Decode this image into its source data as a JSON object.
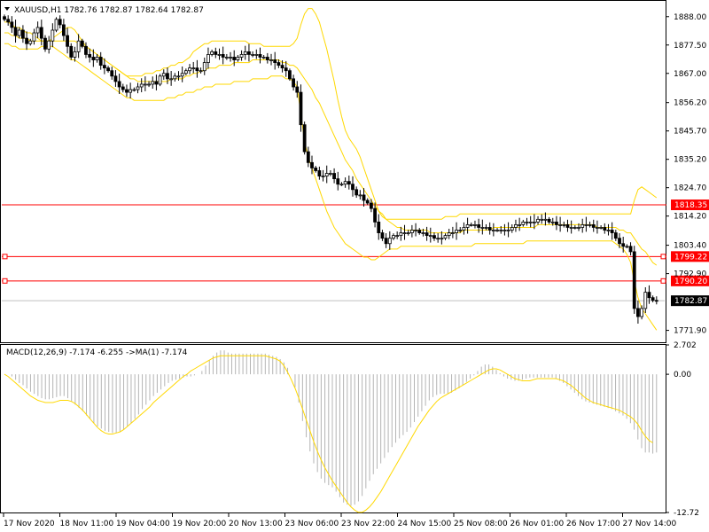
{
  "chart_data": [
    {
      "type": "candlestick",
      "title": "XAUUSD,H1  1782.76 1782.87 1782.64 1782.87",
      "symbol": "XAUUSD",
      "timeframe": "H1",
      "ohlc_header": {
        "open": 1782.76,
        "high": 1782.87,
        "low": 1782.64,
        "close": 1782.87
      },
      "ylim": [
        1767.5,
        1893.5
      ],
      "y_ticks": [
        "1888.00",
        "1877.50",
        "1867.00",
        "1856.20",
        "1845.70",
        "1835.20",
        "1824.70",
        "1814.20",
        "1803.40",
        "1792.90",
        "1771.90"
      ],
      "x_ticks": [
        "17 Nov 2020",
        "18 Nov 11:00",
        "19 Nov 04:00",
        "19 Nov 20:00",
        "20 Nov 13:00",
        "23 Nov 06:00",
        "23 Nov 22:00",
        "24 Nov 15:00",
        "25 Nov 08:00",
        "26 Nov 01:00",
        "26 Nov 17:00",
        "27 Nov 14:00"
      ],
      "current_price": "1782.87",
      "horizontal_levels": [
        {
          "value": 1818.35,
          "label": "1818.35",
          "color": "#ff0000"
        },
        {
          "value": 1799.22,
          "label": "1799.22",
          "color": "#ff0000"
        },
        {
          "value": 1790.2,
          "label": "1790.20",
          "color": "#ff0000"
        }
      ],
      "overlay": "Bollinger Bands",
      "closes": [
        1887,
        1886,
        1884,
        1881,
        1883,
        1880,
        1878,
        1879,
        1882,
        1884,
        1880,
        1876,
        1879,
        1883,
        1887,
        1885,
        1881,
        1877,
        1873,
        1875,
        1879,
        1877,
        1874,
        1873,
        1872,
        1873,
        1870,
        1869,
        1868,
        1866,
        1864,
        1862,
        1861,
        1860,
        1861,
        1861,
        1862,
        1863,
        1863,
        1863,
        1864,
        1863,
        1866,
        1867,
        1865,
        1865,
        1866,
        1866,
        1867,
        1868,
        1869,
        1869,
        1868,
        1868,
        1871,
        1874,
        1875,
        1874,
        1874,
        1873,
        1873,
        1873,
        1872,
        1873,
        1874,
        1875,
        1874,
        1874,
        1874,
        1873,
        1873,
        1872,
        1872,
        1871,
        1870,
        1869,
        1868,
        1865,
        1862,
        1860,
        1848,
        1838,
        1834,
        1832,
        1831,
        1829,
        1829,
        1830,
        1830,
        1828,
        1826,
        1826,
        1827,
        1826,
        1824,
        1822,
        1822,
        1820,
        1819,
        1817,
        1812,
        1808,
        1806,
        1804,
        1806,
        1807,
        1807,
        1808,
        1808,
        1808,
        1809,
        1809,
        1808,
        1808,
        1807,
        1807,
        1806,
        1806,
        1806,
        1807,
        1808,
        1808,
        1809,
        1809,
        1810,
        1811,
        1811,
        1811,
        1810,
        1810,
        1810,
        1809,
        1809,
        1809,
        1809,
        1809,
        1809,
        1810,
        1811,
        1811,
        1812,
        1812,
        1812,
        1812,
        1813,
        1813,
        1813,
        1812,
        1812,
        1811,
        1811,
        1811,
        1810,
        1810,
        1810,
        1810,
        1811,
        1811,
        1811,
        1810,
        1810,
        1810,
        1809,
        1809,
        1808,
        1806,
        1804,
        1803,
        1803,
        1801,
        1780,
        1777,
        1780,
        1786,
        1784,
        1783,
        1782.87
      ],
      "bb_upper": [
        1886,
        1886,
        1885,
        1884,
        1884,
        1883,
        1882,
        1882,
        1881,
        1880,
        1879,
        1879,
        1879,
        1880,
        1881,
        1882,
        1883,
        1884,
        1884,
        1883,
        1881,
        1879,
        1877,
        1876,
        1875,
        1874,
        1873,
        1872,
        1871,
        1870,
        1869,
        1868,
        1867,
        1866,
        1866,
        1866,
        1866,
        1866,
        1867,
        1867,
        1867,
        1868,
        1868,
        1869,
        1869,
        1870,
        1870,
        1871,
        1871,
        1872,
        1873,
        1875,
        1876,
        1877,
        1878,
        1878,
        1879,
        1879,
        1879,
        1879,
        1879,
        1879,
        1879,
        1879,
        1879,
        1879,
        1878,
        1878,
        1878,
        1878,
        1877,
        1877,
        1877,
        1877,
        1877,
        1877,
        1877,
        1877,
        1878,
        1880,
        1885,
        1889,
        1891,
        1891,
        1889,
        1886,
        1881,
        1876,
        1870,
        1864,
        1857,
        1851,
        1846,
        1843,
        1841,
        1839,
        1836,
        1832,
        1828,
        1824,
        1820,
        1816,
        1814,
        1813,
        1813,
        1813,
        1813,
        1813,
        1813,
        1813,
        1813,
        1813,
        1813,
        1813,
        1813,
        1813,
        1813,
        1813,
        1813,
        1814,
        1814,
        1814,
        1814,
        1815,
        1815,
        1815,
        1815,
        1815,
        1815,
        1815,
        1815,
        1815,
        1815,
        1815,
        1815,
        1815,
        1815,
        1815,
        1815,
        1815,
        1815,
        1815,
        1815,
        1815,
        1815,
        1815,
        1815,
        1815,
        1815,
        1815,
        1815,
        1815,
        1815,
        1815,
        1815,
        1815,
        1815,
        1815,
        1815,
        1815,
        1815,
        1815,
        1815,
        1815,
        1815,
        1815,
        1815,
        1815,
        1815,
        1815,
        1820,
        1824,
        1825,
        1824,
        1823,
        1822,
        1821
      ],
      "bb_middle": [
        1882,
        1882,
        1881,
        1881,
        1880,
        1880,
        1880,
        1879,
        1879,
        1879,
        1879,
        1879,
        1879,
        1879,
        1879,
        1879,
        1879,
        1879,
        1879,
        1879,
        1878,
        1877,
        1877,
        1876,
        1875,
        1874,
        1873,
        1872,
        1871,
        1870,
        1869,
        1868,
        1867,
        1866,
        1865,
        1865,
        1864,
        1864,
        1864,
        1864,
        1864,
        1864,
        1864,
        1864,
        1864,
        1865,
        1865,
        1865,
        1865,
        1866,
        1866,
        1867,
        1867,
        1868,
        1868,
        1869,
        1869,
        1869,
        1870,
        1870,
        1870,
        1870,
        1871,
        1871,
        1871,
        1871,
        1871,
        1872,
        1872,
        1872,
        1872,
        1872,
        1872,
        1872,
        1872,
        1871,
        1871,
        1870,
        1870,
        1869,
        1867,
        1865,
        1863,
        1861,
        1858,
        1856,
        1853,
        1850,
        1847,
        1844,
        1841,
        1838,
        1835,
        1833,
        1831,
        1828,
        1826,
        1824,
        1822,
        1820,
        1818,
        1816,
        1815,
        1813,
        1812,
        1811,
        1810,
        1810,
        1809,
        1809,
        1809,
        1809,
        1809,
        1809,
        1809,
        1808,
        1808,
        1808,
        1808,
        1808,
        1808,
        1808,
        1808,
        1808,
        1809,
        1809,
        1809,
        1809,
        1809,
        1809,
        1809,
        1809,
        1810,
        1810,
        1810,
        1810,
        1810,
        1810,
        1810,
        1810,
        1810,
        1810,
        1810,
        1810,
        1811,
        1811,
        1811,
        1811,
        1811,
        1811,
        1811,
        1811,
        1811,
        1811,
        1811,
        1811,
        1811,
        1811,
        1811,
        1811,
        1810,
        1810,
        1810,
        1810,
        1810,
        1810,
        1809,
        1809,
        1808,
        1808,
        1806,
        1804,
        1802,
        1801,
        1799,
        1797,
        1796
      ],
      "bb_lower": [
        1878,
        1878,
        1877,
        1877,
        1876,
        1876,
        1876,
        1876,
        1876,
        1876,
        1877,
        1877,
        1877,
        1877,
        1876,
        1875,
        1874,
        1873,
        1872,
        1872,
        1871,
        1870,
        1869,
        1868,
        1867,
        1866,
        1865,
        1864,
        1863,
        1862,
        1861,
        1860,
        1859,
        1858,
        1858,
        1857,
        1857,
        1857,
        1857,
        1857,
        1857,
        1857,
        1857,
        1857,
        1858,
        1858,
        1858,
        1859,
        1859,
        1860,
        1860,
        1860,
        1861,
        1861,
        1862,
        1862,
        1862,
        1863,
        1863,
        1863,
        1863,
        1863,
        1864,
        1864,
        1864,
        1864,
        1864,
        1865,
        1865,
        1865,
        1865,
        1865,
        1866,
        1866,
        1866,
        1866,
        1865,
        1865,
        1864,
        1862,
        1852,
        1842,
        1836,
        1832,
        1828,
        1824,
        1820,
        1816,
        1813,
        1810,
        1808,
        1806,
        1804,
        1803,
        1802,
        1801,
        1800,
        1799,
        1799,
        1798,
        1798,
        1799,
        1800,
        1801,
        1802,
        1802,
        1802,
        1803,
        1803,
        1803,
        1803,
        1803,
        1803,
        1803,
        1803,
        1803,
        1803,
        1803,
        1803,
        1803,
        1803,
        1803,
        1803,
        1803,
        1803,
        1803,
        1803,
        1804,
        1804,
        1804,
        1804,
        1804,
        1804,
        1804,
        1804,
        1804,
        1804,
        1804,
        1804,
        1804,
        1804,
        1805,
        1805,
        1805,
        1805,
        1805,
        1805,
        1805,
        1805,
        1805,
        1805,
        1805,
        1805,
        1805,
        1805,
        1805,
        1805,
        1805,
        1805,
        1805,
        1805,
        1805,
        1805,
        1805,
        1805,
        1804,
        1803,
        1802,
        1800,
        1797,
        1790,
        1784,
        1780,
        1778,
        1776,
        1774,
        1772
      ]
    },
    {
      "type": "histogram+line",
      "title": "MACD(12,26,9) -7.174 -6.255  ->MA(1) -7.174",
      "ylim": [
        -12.72,
        2.702
      ],
      "y_ticks": [
        "2.702",
        "0.00",
        "-12.72"
      ],
      "macd_histogram": [
        0,
        0,
        -0.2,
        -0.5,
        -0.8,
        -1.0,
        -1.3,
        -1.6,
        -1.8,
        -2.0,
        -2.2,
        -2.3,
        -2.3,
        -2.2,
        -2.1,
        -2.0,
        -2.0,
        -2.2,
        -2.5,
        -2.8,
        -3.1,
        -3.4,
        -3.8,
        -4.1,
        -4.5,
        -4.8,
        -5.0,
        -5.2,
        -5.3,
        -5.4,
        -5.4,
        -5.3,
        -5.1,
        -4.8,
        -4.5,
        -4.1,
        -3.7,
        -3.2,
        -2.8,
        -2.4,
        -2.0,
        -1.7,
        -1.4,
        -1.1,
        -0.8,
        -0.6,
        -0.5,
        -0.4,
        -0.3,
        -0.2,
        -0.2,
        -0.1,
        0,
        0.3,
        0.8,
        1.3,
        1.7,
        2.0,
        2.2,
        2.2,
        2.0,
        1.9,
        1.9,
        1.9,
        1.9,
        1.9,
        1.9,
        1.9,
        1.9,
        1.9,
        1.9,
        1.8,
        1.7,
        1.6,
        1.4,
        1.1,
        0.6,
        0,
        -1.2,
        -2.6,
        -4.3,
        -5.8,
        -7.1,
        -8.2,
        -9.0,
        -9.6,
        -10.0,
        -10.2,
        -10.4,
        -10.8,
        -11.3,
        -11.8,
        -12.0,
        -12.1,
        -12.0,
        -11.7,
        -11.2,
        -10.5,
        -9.8,
        -9.2,
        -8.7,
        -8.2,
        -7.7,
        -7.2,
        -6.7,
        -6.3,
        -5.9,
        -5.6,
        -5.3,
        -4.9,
        -4.4,
        -3.9,
        -3.4,
        -2.9,
        -2.4,
        -2.1,
        -1.9,
        -1.8,
        -1.8,
        -1.8,
        -1.7,
        -1.5,
        -1.3,
        -1.0,
        -0.7,
        -0.4,
        -0.1,
        0.3,
        0.7,
        0.9,
        0.9,
        0.7,
        0.4,
        0.1,
        -0.2,
        -0.4,
        -0.5,
        -0.6,
        -0.6,
        -0.5,
        -0.4,
        -0.3,
        -0.3,
        -0.3,
        -0.3,
        -0.3,
        -0.3,
        -0.3,
        -0.4,
        -0.6,
        -0.8,
        -1.1,
        -1.4,
        -1.7,
        -2.0,
        -2.3,
        -2.5,
        -2.6,
        -2.7,
        -2.8,
        -2.9,
        -3.0,
        -3.1,
        -3.2,
        -3.4,
        -3.6,
        -3.8,
        -4.1,
        -4.5,
        -5.1,
        -6.0,
        -6.8,
        -7.2,
        -7.2,
        -7.3,
        -7.2
      ],
      "signal": [
        0,
        -0.2,
        -0.5,
        -0.8,
        -1.1,
        -1.4,
        -1.7,
        -2.0,
        -2.2,
        -2.4,
        -2.5,
        -2.6,
        -2.6,
        -2.6,
        -2.5,
        -2.4,
        -2.4,
        -2.4,
        -2.5,
        -2.7,
        -3.0,
        -3.3,
        -3.7,
        -4.1,
        -4.5,
        -4.9,
        -5.2,
        -5.4,
        -5.5,
        -5.5,
        -5.4,
        -5.3,
        -5.1,
        -4.8,
        -4.5,
        -4.2,
        -3.9,
        -3.6,
        -3.3,
        -3.0,
        -2.6,
        -2.3,
        -2.0,
        -1.7,
        -1.4,
        -1.1,
        -0.8,
        -0.5,
        -0.2,
        0.0,
        0.3,
        0.5,
        0.7,
        0.9,
        1.1,
        1.3,
        1.5,
        1.6,
        1.7,
        1.7,
        1.7,
        1.7,
        1.7,
        1.7,
        1.7,
        1.7,
        1.7,
        1.7,
        1.7,
        1.7,
        1.7,
        1.6,
        1.5,
        1.4,
        1.2,
        0.8,
        0.2,
        -0.5,
        -1.3,
        -2.2,
        -3.2,
        -4.2,
        -5.2,
        -6.2,
        -7.1,
        -7.9,
        -8.6,
        -9.2,
        -9.8,
        -10.3,
        -10.8,
        -11.3,
        -11.8,
        -12.2,
        -12.5,
        -12.7,
        -12.7,
        -12.5,
        -12.2,
        -11.8,
        -11.3,
        -10.8,
        -10.2,
        -9.6,
        -9.0,
        -8.4,
        -7.8,
        -7.2,
        -6.6,
        -6.0,
        -5.4,
        -4.8,
        -4.3,
        -3.8,
        -3.3,
        -2.9,
        -2.5,
        -2.2,
        -2.0,
        -1.8,
        -1.6,
        -1.4,
        -1.2,
        -1.0,
        -0.8,
        -0.6,
        -0.4,
        -0.2,
        0.0,
        0.2,
        0.4,
        0.5,
        0.5,
        0.4,
        0.2,
        0.0,
        -0.2,
        -0.4,
        -0.5,
        -0.6,
        -0.6,
        -0.6,
        -0.5,
        -0.4,
        -0.4,
        -0.4,
        -0.4,
        -0.4,
        -0.4,
        -0.5,
        -0.6,
        -0.8,
        -1.0,
        -1.3,
        -1.6,
        -1.9,
        -2.2,
        -2.4,
        -2.6,
        -2.7,
        -2.8,
        -2.9,
        -3.0,
        -3.1,
        -3.2,
        -3.3,
        -3.5,
        -3.7,
        -3.9,
        -4.2,
        -4.6,
        -5.2,
        -5.7,
        -6.1,
        -6.3
      ]
    }
  ]
}
